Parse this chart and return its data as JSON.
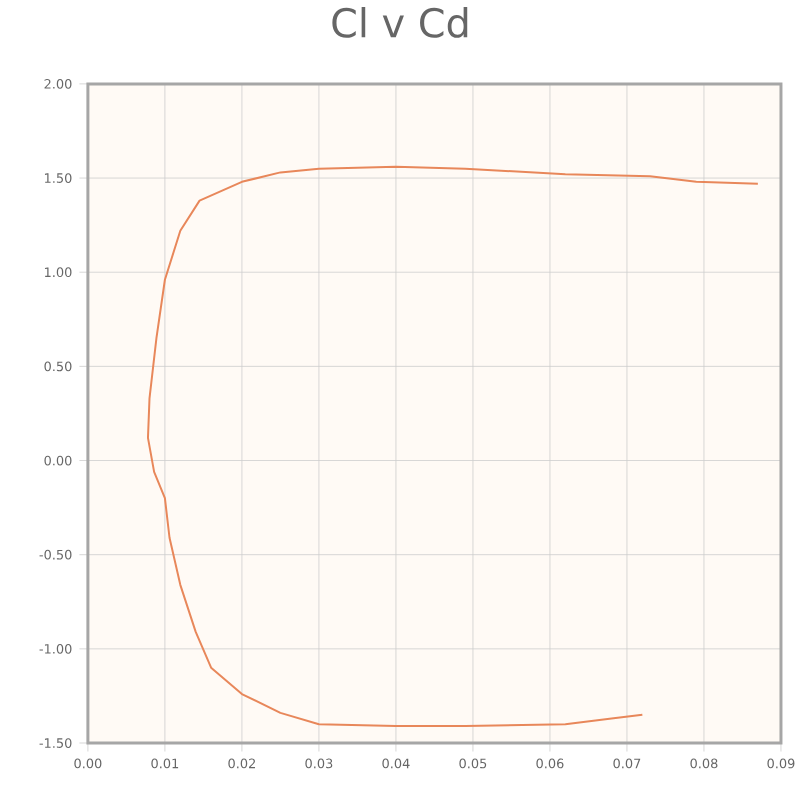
{
  "chart_data": {
    "type": "line",
    "title": "Cl v Cd",
    "series": [
      {
        "color": "#e8875a",
        "x": [
          0.072,
          0.068,
          0.062,
          0.049,
          0.04,
          0.03,
          0.025,
          0.02,
          0.016,
          0.014,
          0.012,
          0.0106,
          0.01,
          0.0086,
          0.0078,
          0.008,
          0.0089,
          0.01,
          0.012,
          0.0145,
          0.02,
          0.025,
          0.03,
          0.04,
          0.049,
          0.062,
          0.073,
          0.079,
          0.087
        ],
        "values": [
          -1.35,
          -1.37,
          -1.4,
          -1.41,
          -1.41,
          -1.4,
          -1.34,
          -1.24,
          -1.1,
          -0.91,
          -0.66,
          -0.41,
          -0.2,
          -0.06,
          0.12,
          0.33,
          0.65,
          0.96,
          1.22,
          1.38,
          1.48,
          1.53,
          1.55,
          1.56,
          1.55,
          1.52,
          1.51,
          1.48,
          1.47
        ]
      }
    ],
    "xlim": [
      0,
      0.09
    ],
    "xticks": [
      {
        "value": 0,
        "label": "0.00"
      },
      {
        "value": 0.01,
        "label": "0.01"
      },
      {
        "value": 0.02,
        "label": "0.02"
      },
      {
        "value": 0.03,
        "label": "0.03"
      },
      {
        "value": 0.04,
        "label": "0.04"
      },
      {
        "value": 0.05,
        "label": "0.05"
      },
      {
        "value": 0.06,
        "label": "0.06"
      },
      {
        "value": 0.07,
        "label": "0.07"
      },
      {
        "value": 0.08,
        "label": "0.08"
      },
      {
        "value": 0.09,
        "label": "0.09"
      }
    ],
    "ylim": [
      -1.5,
      2
    ],
    "yticks": [
      {
        "value": -1.5,
        "label": "-1.50"
      },
      {
        "value": -1,
        "label": "-1.00"
      },
      {
        "value": -0.5,
        "label": "-0.50"
      },
      {
        "value": 0,
        "label": "0.00"
      },
      {
        "value": 0.5,
        "label": "0.50"
      },
      {
        "value": 1,
        "label": "1.00"
      },
      {
        "value": 1.5,
        "label": "1.50"
      },
      {
        "value": 2,
        "label": "2.00"
      }
    ],
    "grid": true,
    "marker": "none",
    "line_style": "solid"
  }
}
